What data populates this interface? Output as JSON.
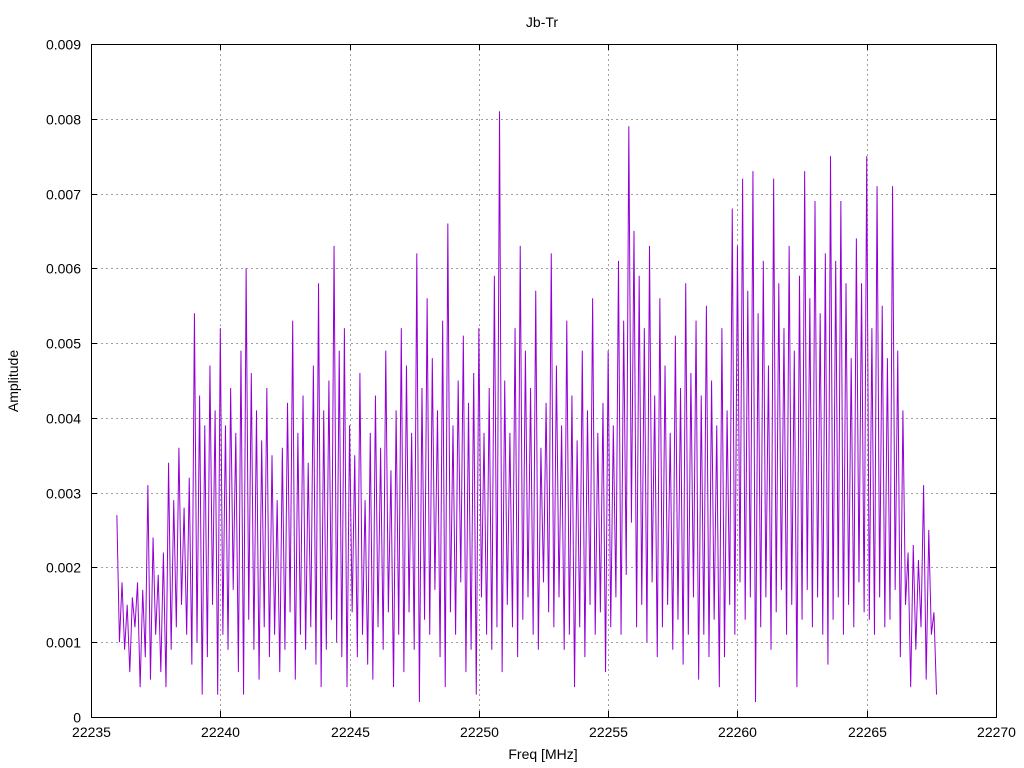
{
  "chart_data": {
    "type": "line",
    "title": "Jb-Tr",
    "xlabel": "Freq [MHz]",
    "ylabel": "Amplitude",
    "xlim": [
      22235,
      22270
    ],
    "ylim": [
      0,
      0.009
    ],
    "x_ticks": [
      22235,
      22240,
      22245,
      22250,
      22255,
      22260,
      22265,
      22270
    ],
    "x_tick_labels": [
      "22235",
      "22240",
      "22245",
      "22250",
      "22255",
      "22260",
      "22265",
      "22270"
    ],
    "y_ticks": [
      0,
      0.001,
      0.002,
      0.003,
      0.004,
      0.005,
      0.006,
      0.007,
      0.008,
      0.009
    ],
    "y_tick_labels": [
      "0",
      "0.001",
      "0.002",
      "0.003",
      "0.004",
      "0.005",
      "0.006",
      "0.007",
      "0.008",
      "0.009"
    ],
    "grid": true,
    "line_color": "#9400d3",
    "series": [
      {
        "x_start": 22236.0,
        "x_step": 0.1,
        "values": [
          0.0027,
          0.001,
          0.0018,
          0.0009,
          0.0015,
          0.0006,
          0.0016,
          0.0012,
          0.0018,
          0.0004,
          0.0017,
          0.0008,
          0.0031,
          0.0005,
          0.0024,
          0.0011,
          0.0019,
          0.0006,
          0.0022,
          0.0004,
          0.0034,
          0.0009,
          0.0029,
          0.0012,
          0.0036,
          0.0015,
          0.0028,
          0.0011,
          0.0032,
          0.0007,
          0.0054,
          0.001,
          0.0043,
          0.0003,
          0.0039,
          0.0008,
          0.0047,
          0.0015,
          0.0041,
          0.0003,
          0.0052,
          0.0011,
          0.0039,
          0.0009,
          0.0044,
          0.0017,
          0.0038,
          0.0006,
          0.0049,
          0.0003,
          0.006,
          0.0013,
          0.0046,
          0.0009,
          0.0041,
          0.0005,
          0.0037,
          0.0012,
          0.0044,
          0.0008,
          0.0035,
          0.0011,
          0.0029,
          0.0006,
          0.0036,
          0.0009,
          0.0042,
          0.0014,
          0.0053,
          0.0005,
          0.0038,
          0.0011,
          0.0043,
          0.0009,
          0.0034,
          0.0012,
          0.0047,
          0.0007,
          0.0058,
          0.0004,
          0.0041,
          0.0009,
          0.0045,
          0.0013,
          0.0063,
          0.001,
          0.0049,
          0.0008,
          0.0052,
          0.0004,
          0.0039,
          0.0014,
          0.0035,
          0.0008,
          0.0046,
          0.0011,
          0.0029,
          0.0007,
          0.0038,
          0.0005,
          0.0043,
          0.0012,
          0.0036,
          0.0009,
          0.0049,
          0.0014,
          0.0033,
          0.0004,
          0.0041,
          0.0011,
          0.0052,
          0.0006,
          0.0047,
          0.0014,
          0.0038,
          0.0009,
          0.0062,
          0.0002,
          0.0044,
          0.0013,
          0.0056,
          0.0011,
          0.0048,
          0.0017,
          0.0041,
          0.0008,
          0.0053,
          0.0004,
          0.0066,
          0.0014,
          0.0039,
          0.0011,
          0.0045,
          0.0018,
          0.0051,
          0.0006,
          0.0042,
          0.0009,
          0.0046,
          0.0003,
          0.0052,
          0.0016,
          0.0038,
          0.0011,
          0.0044,
          0.0009,
          0.0059,
          0.0012,
          0.0081,
          0.0006,
          0.0045,
          0.0015,
          0.0038,
          0.0012,
          0.0052,
          0.0008,
          0.0063,
          0.0013,
          0.0049,
          0.0016,
          0.0044,
          0.0011,
          0.0057,
          0.0009,
          0.0036,
          0.0018,
          0.0042,
          0.0014,
          0.0062,
          0.0012,
          0.0047,
          0.0016,
          0.0039,
          0.0009,
          0.0053,
          0.0011,
          0.0043,
          0.0004,
          0.0037,
          0.0012,
          0.0049,
          0.0008,
          0.0041,
          0.0015,
          0.0056,
          0.0011,
          0.0038,
          0.0014,
          0.0042,
          0.0006,
          0.0049,
          0.0012,
          0.0039,
          0.0016,
          0.0061,
          0.0011,
          0.0053,
          0.0019,
          0.0079,
          0.0026,
          0.0065,
          0.0012,
          0.0059,
          0.0015,
          0.0052,
          0.001,
          0.0063,
          0.0018,
          0.0043,
          0.0008,
          0.0056,
          0.0012,
          0.0047,
          0.0015,
          0.0038,
          0.0009,
          0.0051,
          0.0013,
          0.0044,
          0.0007,
          0.0058,
          0.0011,
          0.0046,
          0.0016,
          0.0053,
          0.0005,
          0.0043,
          0.0011,
          0.0055,
          0.0008,
          0.0045,
          0.0013,
          0.0039,
          0.0004,
          0.0052,
          0.0008,
          0.0041,
          0.0015,
          0.0068,
          0.0011,
          0.0063,
          0.0018,
          0.0072,
          0.0013,
          0.0057,
          0.0016,
          0.0073,
          0.0002,
          0.0054,
          0.0012,
          0.0061,
          0.0016,
          0.0047,
          0.0009,
          0.0072,
          0.0014,
          0.0058,
          0.0017,
          0.0052,
          0.0011,
          0.0063,
          0.0015,
          0.0049,
          0.0004,
          0.0059,
          0.0013,
          0.0073,
          0.0017,
          0.0056,
          0.0012,
          0.0069,
          0.0016,
          0.0054,
          0.0011,
          0.0062,
          0.0007,
          0.0075,
          0.0013,
          0.0061,
          0.0016,
          0.0069,
          0.0011,
          0.0058,
          0.0015,
          0.0048,
          0.0012,
          0.0064,
          0.0018,
          0.0058,
          0.0014,
          0.0075,
          0.0013,
          0.0052,
          0.0011,
          0.0071,
          0.0016,
          0.0055,
          0.0012,
          0.0048,
          0.0013,
          0.0071,
          0.0017,
          0.0049,
          0.0008,
          0.0041,
          0.0015,
          0.0022,
          0.0004,
          0.0023,
          0.0009,
          0.0021,
          0.0012,
          0.0031,
          0.0005,
          0.0025,
          0.0011,
          0.0014,
          0.0003
        ]
      }
    ]
  }
}
